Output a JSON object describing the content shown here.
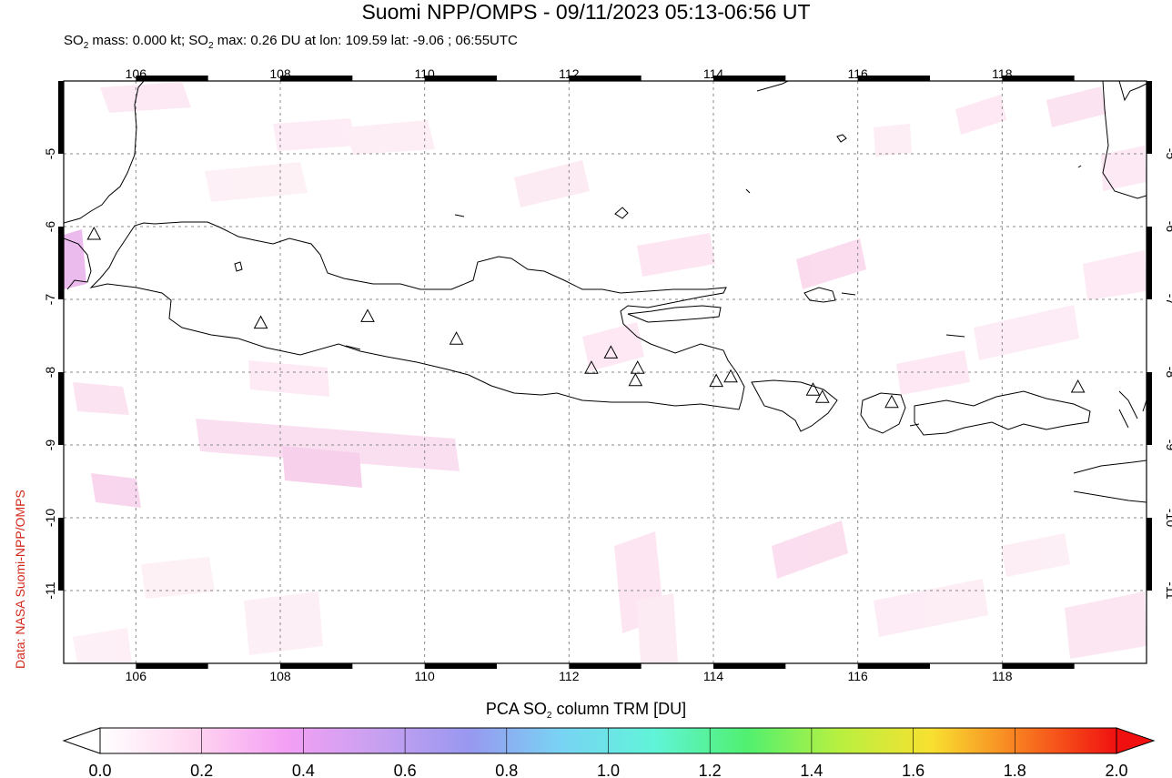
{
  "title": "Suomi NPP/OMPS - 09/11/2023 05:13-06:56 UT",
  "subtitle": {
    "p1": "SO",
    "sub": "2",
    "p2": " mass: 0.000 kt; SO",
    "sub2": "2",
    "p3": " max: 0.26 DU at lon: 109.59 lat: -9.06 ; 06:55UTC"
  },
  "credit": "Data: NASA Suomi-NPP/OMPS",
  "map": {
    "lon_range": [
      105,
      120
    ],
    "lat_range": [
      -12,
      -4
    ],
    "lon_ticks": [
      "106",
      "108",
      "110",
      "112",
      "114",
      "116",
      "118"
    ],
    "lat_ticks": [
      "-5",
      "-6",
      "-7",
      "-8",
      "-9",
      "-10",
      "-11"
    ],
    "grid": "dashed",
    "volcano_marker": "triangle-outline-icon",
    "volcanoes": [
      {
        "lon": 105.42,
        "lat": -6.1
      },
      {
        "lon": 107.73,
        "lat": -7.32
      },
      {
        "lon": 109.21,
        "lat": -7.23
      },
      {
        "lon": 110.44,
        "lat": -7.54
      },
      {
        "lon": 112.31,
        "lat": -7.94
      },
      {
        "lon": 112.58,
        "lat": -7.73
      },
      {
        "lon": 112.95,
        "lat": -7.94
      },
      {
        "lon": 112.92,
        "lat": -8.11
      },
      {
        "lon": 114.04,
        "lat": -8.12
      },
      {
        "lon": 114.24,
        "lat": -8.06
      },
      {
        "lon": 115.38,
        "lat": -8.24
      },
      {
        "lon": 115.51,
        "lat": -8.34
      },
      {
        "lon": 116.47,
        "lat": -8.41
      },
      {
        "lon": 119.05,
        "lat": -8.2
      }
    ]
  },
  "colorbar": {
    "title_p1": "PCA SO",
    "title_sub": "2",
    "title_p2": " column TRM [DU]",
    "range": [
      0.0,
      2.0
    ],
    "tick_labels": [
      "0.0",
      "0.2",
      "0.4",
      "0.6",
      "0.8",
      "1.0",
      "1.2",
      "1.4",
      "1.6",
      "1.8",
      "2.0"
    ],
    "colors": [
      "#ffffff",
      "#ffd6f0",
      "#f4a0f4",
      "#c8a0f0",
      "#9898f0",
      "#78d4f4",
      "#60f4d8",
      "#50f070",
      "#b8f040",
      "#f8e030",
      "#f87820",
      "#f01010"
    ]
  }
}
